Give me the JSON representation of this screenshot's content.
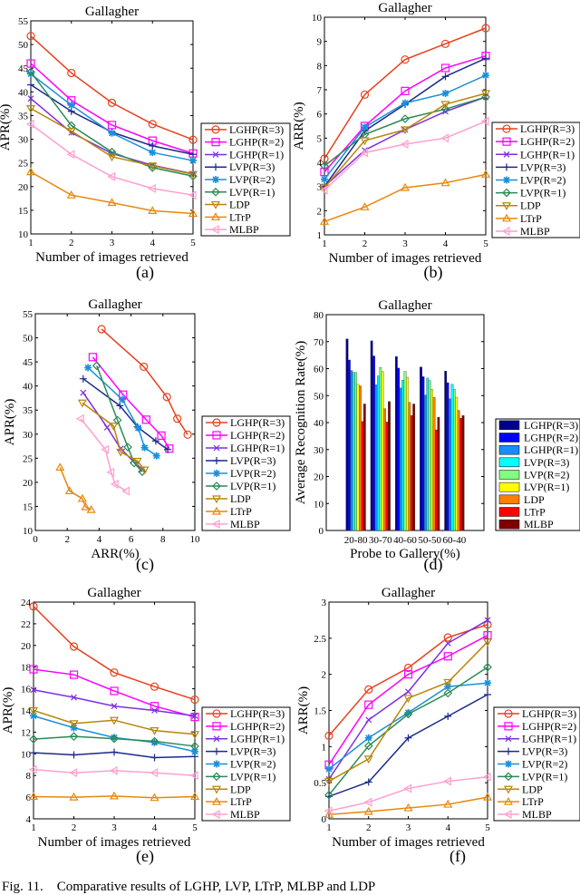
{
  "legend": [
    "LGHP(R=3)",
    "LGHP(R=2)",
    "LGHP(R=1)",
    "LVP(R=3)",
    "LVP(R=2)",
    "LVP(R=1)",
    "LDP",
    "LTrP",
    "MLBP"
  ],
  "line_colors": [
    "#e5401e",
    "#ff00ff",
    "#7e2fe0",
    "#1b2a8a",
    "#1b8fd9",
    "#2b8a55",
    "#b8860b",
    "#e8870c",
    "#ff9fd0"
  ],
  "markers": [
    "circle",
    "square",
    "x",
    "plus",
    "star",
    "diamond",
    "triangle-down",
    "triangle-up",
    "triangle-left"
  ],
  "bar_colors": [
    "#00008f",
    "#0000ff",
    "#1a8cff",
    "#00ffff",
    "#80ff80",
    "#ffff00",
    "#ff7f00",
    "#ff0000",
    "#800000"
  ],
  "caption": "Fig. 11.    Comparative results of LGHP, LVP, LTrP, MLBP and LDP",
  "chart_data": [
    {
      "panel": "(a)",
      "type": "line",
      "title": "Gallagher",
      "xlabel": "Number of images retrieved",
      "ylabel": "APR(%)",
      "xlim": [
        1,
        5
      ],
      "ylim": [
        10,
        55
      ],
      "xticks": [
        1,
        2,
        3,
        4,
        5
      ],
      "yticks": [
        10,
        15,
        20,
        25,
        30,
        35,
        40,
        45,
        50,
        55
      ],
      "legend_position": "right",
      "x": [
        1,
        2,
        3,
        4,
        5
      ],
      "series": [
        {
          "name": "LGHP(R=3)",
          "values": [
            51.8,
            44,
            37.7,
            33.2,
            29.9
          ]
        },
        {
          "name": "LGHP(R=2)",
          "values": [
            46,
            38.2,
            33,
            29.7,
            27
          ]
        },
        {
          "name": "LGHP(R=1)",
          "values": [
            38.6,
            31.4,
            27,
            24.5,
            22.7
          ]
        },
        {
          "name": "LVP(R=3)",
          "values": [
            41.5,
            35.9,
            31.5,
            28.6,
            26.8
          ]
        },
        {
          "name": "LVP(R=2)",
          "values": [
            43.8,
            37.2,
            31.3,
            27.2,
            25.5
          ]
        },
        {
          "name": "LVP(R=1)",
          "values": [
            44.2,
            32.9,
            27.3,
            24,
            22.2
          ]
        },
        {
          "name": "LDP",
          "values": [
            36.5,
            31.7,
            26.3,
            24.4,
            22.6
          ]
        },
        {
          "name": "LTrP",
          "values": [
            23.1,
            18.2,
            16.6,
            14.9,
            14.3
          ]
        },
        {
          "name": "MLBP",
          "values": [
            33.2,
            26.8,
            22.1,
            19.6,
            18.2
          ]
        }
      ]
    },
    {
      "panel": "(b)",
      "type": "line",
      "title": "Gallagher",
      "xlabel": "Number of images retrieved",
      "ylabel": "ARR(%)",
      "xlim": [
        1,
        5
      ],
      "ylim": [
        1,
        10
      ],
      "xticks": [
        1,
        2,
        3,
        4,
        5
      ],
      "yticks": [
        1,
        2,
        3,
        4,
        5,
        6,
        7,
        8,
        9,
        10
      ],
      "legend_position": "right",
      "x": [
        1,
        2,
        3,
        4,
        5
      ],
      "series": [
        {
          "name": "LGHP(R=3)",
          "values": [
            4.15,
            6.8,
            8.25,
            8.9,
            9.55
          ]
        },
        {
          "name": "LGHP(R=2)",
          "values": [
            3.6,
            5.5,
            6.95,
            7.9,
            8.4
          ]
        },
        {
          "name": "LGHP(R=1)",
          "values": [
            3.0,
            4.5,
            5.35,
            6.1,
            6.7
          ]
        },
        {
          "name": "LVP(R=3)",
          "values": [
            3.0,
            5.3,
            6.4,
            7.55,
            8.3
          ]
        },
        {
          "name": "LVP(R=2)",
          "values": [
            3.3,
            5.45,
            6.45,
            6.85,
            7.6
          ]
        },
        {
          "name": "LVP(R=1)",
          "values": [
            3.85,
            5.15,
            5.8,
            6.2,
            6.7
          ]
        },
        {
          "name": "LDP",
          "values": [
            2.95,
            4.9,
            5.35,
            6.4,
            6.85
          ]
        },
        {
          "name": "LTrP",
          "values": [
            1.55,
            2.15,
            2.95,
            3.15,
            3.5
          ]
        },
        {
          "name": "MLBP",
          "values": [
            2.85,
            4.4,
            4.75,
            5.0,
            5.7
          ]
        }
      ]
    },
    {
      "panel": "(c)",
      "type": "scatter",
      "title": "Gallagher",
      "xlabel": "ARR(%)",
      "ylabel": "APR(%)",
      "xlim": [
        0,
        10
      ],
      "ylim": [
        10,
        55
      ],
      "xticks": [
        0,
        2,
        4,
        6,
        8,
        10
      ],
      "yticks": [
        10,
        15,
        20,
        25,
        30,
        35,
        40,
        45,
        50,
        55
      ],
      "legend_position": "right",
      "series": [
        {
          "name": "LGHP(R=3)",
          "x": [
            4.15,
            6.8,
            8.25,
            8.9,
            9.55
          ],
          "y": [
            51.8,
            44,
            37.7,
            33.2,
            29.9
          ]
        },
        {
          "name": "LGHP(R=2)",
          "x": [
            3.6,
            5.5,
            6.95,
            7.9,
            8.4
          ],
          "y": [
            46,
            38.2,
            33,
            29.7,
            27
          ]
        },
        {
          "name": "LGHP(R=1)",
          "x": [
            3.0,
            4.5,
            5.35,
            6.1,
            6.7
          ],
          "y": [
            38.6,
            31.4,
            27,
            24.5,
            22.7
          ]
        },
        {
          "name": "LVP(R=3)",
          "x": [
            3.0,
            5.3,
            6.4,
            7.55,
            8.3
          ],
          "y": [
            41.5,
            35.9,
            31.5,
            28.6,
            26.8
          ]
        },
        {
          "name": "LVP(R=2)",
          "x": [
            3.3,
            5.45,
            6.45,
            6.85,
            7.6
          ],
          "y": [
            43.8,
            37.2,
            31.3,
            27.2,
            25.5
          ]
        },
        {
          "name": "LVP(R=1)",
          "x": [
            3.85,
            5.15,
            5.8,
            6.2,
            6.7
          ],
          "y": [
            44.2,
            32.9,
            27.3,
            24,
            22.2
          ]
        },
        {
          "name": "LDP",
          "x": [
            2.95,
            4.9,
            5.35,
            6.4,
            6.85
          ],
          "y": [
            36.5,
            31.7,
            26.3,
            24.4,
            22.6
          ]
        },
        {
          "name": "LTrP",
          "x": [
            1.55,
            2.15,
            2.95,
            3.15,
            3.5
          ],
          "y": [
            23.1,
            18.2,
            16.6,
            14.9,
            14.3
          ]
        },
        {
          "name": "MLBP",
          "x": [
            2.85,
            4.4,
            4.75,
            5.0,
            5.7
          ],
          "y": [
            33.2,
            26.8,
            22.1,
            19.6,
            18.2
          ]
        }
      ]
    },
    {
      "panel": "(d)",
      "type": "bar",
      "title": "Gallagher",
      "xlabel": "Probe to Gallery(%)",
      "ylabel": "Average Recognition Rate(%)",
      "ylim": [
        0,
        80
      ],
      "yticks": [
        0,
        10,
        20,
        30,
        40,
        50,
        60,
        70,
        80
      ],
      "legend_position": "right",
      "categories": [
        "20-80",
        "30-70",
        "40-60",
        "50-50",
        "60-40"
      ],
      "series": [
        {
          "name": "LGHP(R=3)",
          "values": [
            71,
            70.3,
            64.5,
            60.6,
            59.1
          ]
        },
        {
          "name": "LGHP(R=2)",
          "values": [
            63.2,
            64.7,
            60.2,
            57,
            54.8
          ]
        },
        {
          "name": "LGHP(R=1)",
          "values": [
            59.3,
            54,
            52.8,
            50.2,
            48.8
          ]
        },
        {
          "name": "LVP(R=3)",
          "values": [
            58.6,
            57.3,
            55.7,
            56.5,
            54.2
          ]
        },
        {
          "name": "LVP(R=2)",
          "values": [
            58.6,
            60.4,
            59,
            55.6,
            52.3
          ]
        },
        {
          "name": "LVP(R=1)",
          "values": [
            54.2,
            58.9,
            56.8,
            52.3,
            49.4
          ]
        },
        {
          "name": "LDP",
          "values": [
            53.6,
            45.1,
            47.5,
            49.4,
            44.5
          ]
        },
        {
          "name": "LTrP",
          "values": [
            40.4,
            40.2,
            42.6,
            37.3,
            41.6
          ]
        },
        {
          "name": "MLBP",
          "values": [
            46.9,
            47.8,
            46.9,
            42,
            42.6
          ]
        }
      ]
    },
    {
      "panel": "(e)",
      "type": "line",
      "title": "Gallagher",
      "xlabel": "Number of images retrieved",
      "ylabel": "APR(%)",
      "xlim": [
        1,
        5
      ],
      "ylim": [
        4,
        24
      ],
      "xticks": [
        1,
        2,
        3,
        4,
        5
      ],
      "yticks": [
        4,
        6,
        8,
        10,
        12,
        14,
        16,
        18,
        20,
        22,
        24
      ],
      "legend_position": "right",
      "x": [
        1,
        2,
        3,
        4,
        5
      ],
      "series": [
        {
          "name": "LGHP(R=3)",
          "values": [
            23.6,
            19.9,
            17.5,
            16.2,
            15
          ]
        },
        {
          "name": "LGHP(R=2)",
          "values": [
            17.8,
            17.3,
            15.8,
            14.4,
            13.4
          ]
        },
        {
          "name": "LGHP(R=1)",
          "values": [
            15.9,
            15.2,
            14.4,
            14.0,
            13.5
          ]
        },
        {
          "name": "LVP(R=3)",
          "values": [
            10.1,
            9.9,
            10.15,
            9.65,
            9.75
          ]
        },
        {
          "name": "LVP(R=2)",
          "values": [
            13.5,
            12.4,
            11.5,
            11.05,
            10.2
          ]
        },
        {
          "name": "LVP(R=1)",
          "values": [
            11.35,
            11.6,
            11.4,
            11.15,
            10.7
          ]
        },
        {
          "name": "LDP",
          "values": [
            14,
            12.8,
            13.1,
            12.15,
            11.8
          ]
        },
        {
          "name": "LTrP",
          "values": [
            6.05,
            6.0,
            6.1,
            5.95,
            6.05
          ]
        },
        {
          "name": "MLBP",
          "values": [
            8.55,
            8.25,
            8.45,
            8.25,
            8.0
          ]
        }
      ]
    },
    {
      "panel": "(f)",
      "type": "line",
      "title": "Gallagher",
      "xlabel": "Number of images retrieved",
      "ylabel": "ARR(%)",
      "xlim": [
        1,
        5
      ],
      "ylim": [
        0,
        3
      ],
      "xticks": [
        1,
        2,
        3,
        4,
        5
      ],
      "yticks": [
        0,
        0.5,
        1,
        1.5,
        2,
        2.5,
        3
      ],
      "legend_position": "right",
      "x": [
        1,
        2,
        3,
        4,
        5
      ],
      "series": [
        {
          "name": "LGHP(R=3)",
          "values": [
            1.15,
            1.79,
            2.09,
            2.51,
            2.69
          ]
        },
        {
          "name": "LGHP(R=2)",
          "values": [
            0.75,
            1.58,
            2.0,
            2.25,
            2.54
          ]
        },
        {
          "name": "LGHP(R=1)",
          "values": [
            0.55,
            1.37,
            1.76,
            2.43,
            2.75
          ]
        },
        {
          "name": "LVP(R=3)",
          "values": [
            0.31,
            0.51,
            1.12,
            1.42,
            1.72
          ]
        },
        {
          "name": "LVP(R=2)",
          "values": [
            0.69,
            1.12,
            1.47,
            1.83,
            1.88
          ]
        },
        {
          "name": "LVP(R=1)",
          "values": [
            0.33,
            1.01,
            1.45,
            1.74,
            2.1
          ]
        },
        {
          "name": "LDP",
          "values": [
            0.52,
            0.83,
            1.67,
            1.89,
            2.45
          ]
        },
        {
          "name": "LTrP",
          "values": [
            0.06,
            0.1,
            0.15,
            0.2,
            0.3
          ]
        },
        {
          "name": "MLBP",
          "values": [
            0.11,
            0.23,
            0.42,
            0.52,
            0.58
          ]
        }
      ]
    }
  ]
}
